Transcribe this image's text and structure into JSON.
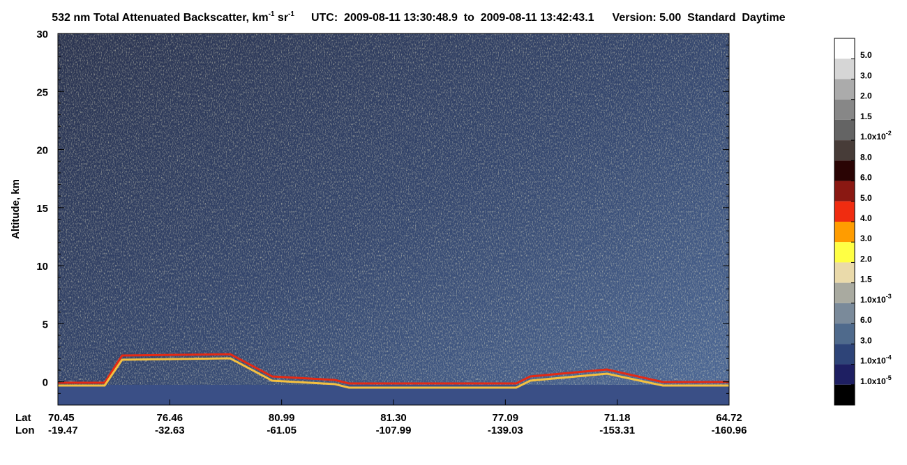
{
  "chart_data": {
    "type": "heatmap",
    "title": {
      "text": "532 nm Total Attenuated Backscatter, km",
      "unit_exp": "-1",
      "unit2": " sr",
      "unit2_exp": "-1"
    },
    "time_range": "UTC:  2009-08-11 13:30:48.9  to  2009-08-11 13:42:43.1",
    "version": "Version: 5.00  Standard  Daytime",
    "y_label": "Altitude, km",
    "ylim": [
      -2,
      30
    ],
    "yticks": [
      0,
      5,
      10,
      15,
      20,
      25,
      30
    ],
    "x_rows": [
      {
        "name": "Lat",
        "labels": [
          "70.45",
          "76.46",
          "80.99",
          "81.30",
          "77.09",
          "71.18",
          "64.72"
        ]
      },
      {
        "name": "Lon",
        "labels": [
          "-19.47",
          "-32.63",
          "-61.05",
          "-107.99",
          "-139.03",
          "-153.31",
          "-160.96"
        ]
      }
    ],
    "colorbar": {
      "colors": [
        "#ffffff",
        "#d6d6d6",
        "#ababab",
        "#878787",
        "#646464",
        "#473c38",
        "#2a0404",
        "#8a1812",
        "#f02c10",
        "#ff9c00",
        "#ffff44",
        "#eadaaa",
        "#a9aaa0",
        "#7a8a9a",
        "#4f6a8c",
        "#2e4478",
        "#1e1f62",
        "#000000"
      ],
      "labels": [
        {
          "text": "5.0"
        },
        {
          "text": "3.0"
        },
        {
          "text": "2.0"
        },
        {
          "text": "1.5"
        },
        {
          "text": "1.0x10",
          "exp": "-2"
        },
        {
          "text": "8.0"
        },
        {
          "text": "6.0"
        },
        {
          "text": "5.0"
        },
        {
          "text": "4.0"
        },
        {
          "text": "3.0"
        },
        {
          "text": "2.0"
        },
        {
          "text": "1.5"
        },
        {
          "text": "1.0x10",
          "exp": "-3"
        },
        {
          "text": "6.0"
        },
        {
          "text": "3.0"
        },
        {
          "text": "1.0x10",
          "exp": "-4"
        },
        {
          "text": "1.0x10",
          "exp": "-5"
        }
      ]
    }
  }
}
